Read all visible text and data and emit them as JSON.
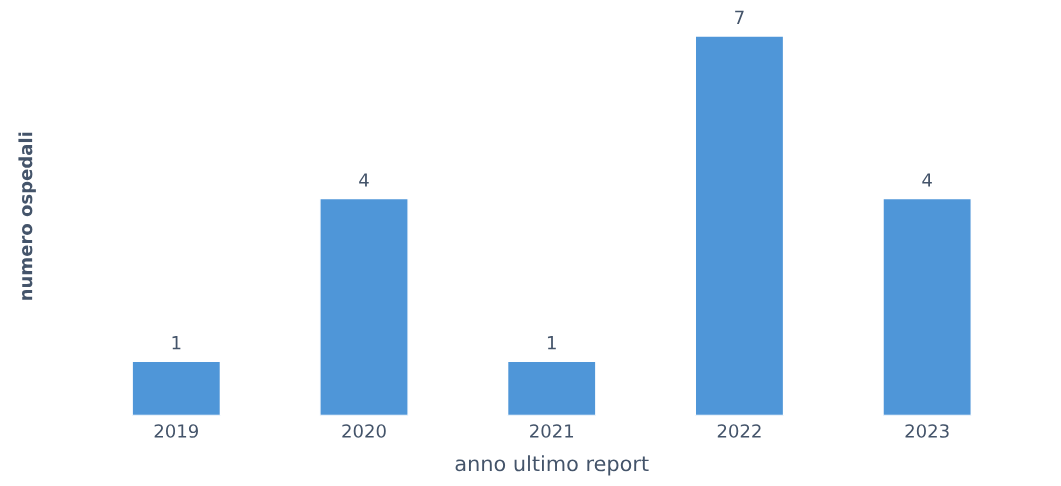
{
  "chart_data": {
    "type": "bar",
    "xlabel": "anno ultimo report",
    "ylabel": "numero ospedali",
    "categories": [
      "2019",
      "2020",
      "2021",
      "2022",
      "2023"
    ],
    "values": [
      1,
      4,
      1,
      7,
      4
    ],
    "color": "#4f96d8",
    "data_labels": true,
    "grid": false,
    "legend": false
  }
}
